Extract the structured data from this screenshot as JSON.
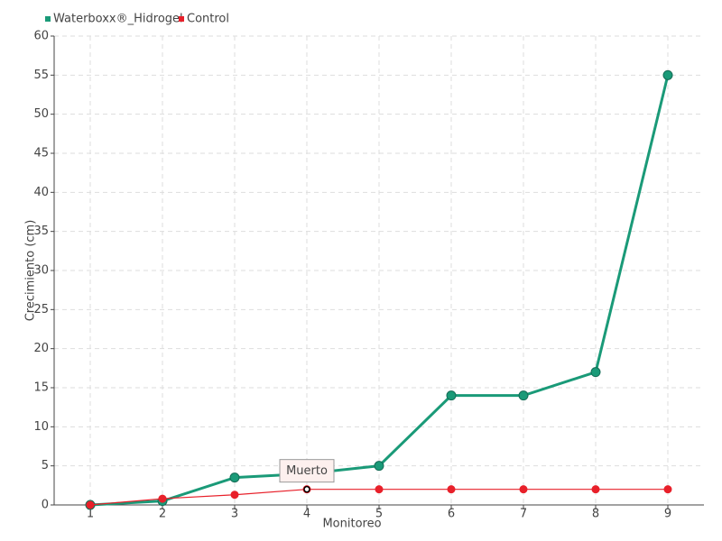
{
  "chart_data": {
    "type": "line",
    "x_label": "Monitoreo",
    "y_label": "Crecimiento (cm)",
    "categories": [
      "1",
      "2",
      "3",
      "4",
      "5",
      "6",
      "7",
      "8",
      "9"
    ],
    "series": [
      {
        "name": "Waterboxx®_Hidrogel",
        "color": "#1a9a78",
        "values": [
          0,
          0.5,
          3.5,
          4,
          5,
          14,
          14,
          17,
          55
        ]
      },
      {
        "name": "Control",
        "color": "#e8202a",
        "values": [
          0,
          0.8,
          1.3,
          2,
          2,
          2,
          2,
          2,
          2
        ]
      }
    ],
    "annotation": {
      "text": "Muerto",
      "category": "4"
    },
    "ylim": [
      0,
      60
    ],
    "yticks": [
      0,
      5,
      10,
      15,
      20,
      25,
      30,
      35,
      40,
      45,
      50,
      55,
      60
    ],
    "grid": true,
    "legend": "top-left"
  }
}
